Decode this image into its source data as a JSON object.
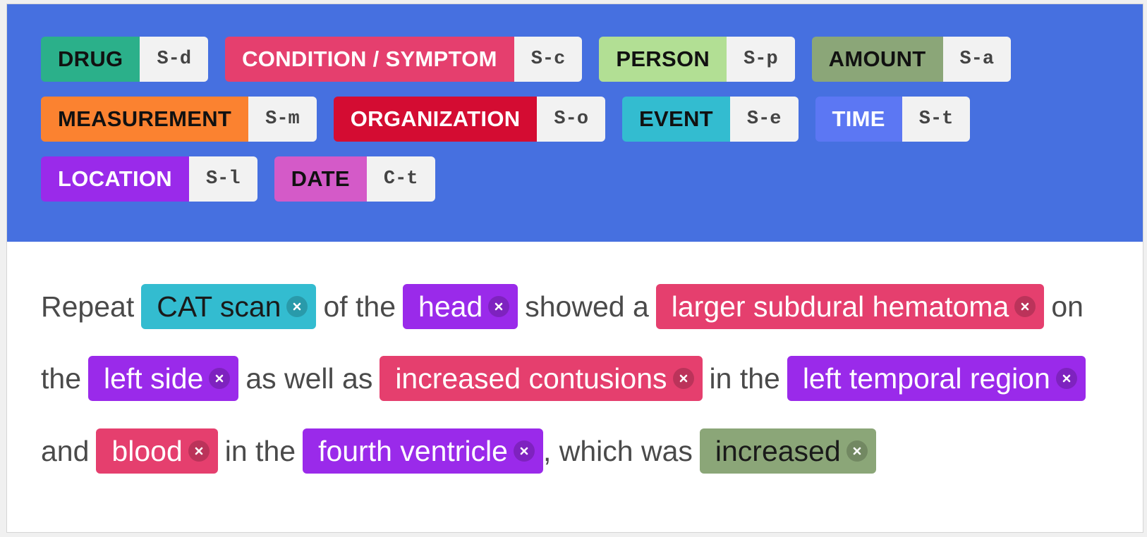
{
  "labels": [
    {
      "name": "DRUG",
      "key": "S-d",
      "bg": "#2bb08a",
      "fg": "#111111"
    },
    {
      "name": "CONDITION / SYMPTOM",
      "key": "S-c",
      "bg": "#e53f6e",
      "fg": "#ffffff"
    },
    {
      "name": "PERSON",
      "key": "S-p",
      "bg": "#b2df94",
      "fg": "#111111"
    },
    {
      "name": "AMOUNT",
      "key": "S-a",
      "bg": "#8ba678",
      "fg": "#111111"
    },
    {
      "name": "MEASUREMENT",
      "key": "S-m",
      "bg": "#fb8230",
      "fg": "#111111"
    },
    {
      "name": "ORGANIZATION",
      "key": "S-o",
      "bg": "#d40c32",
      "fg": "#ffffff"
    },
    {
      "name": "EVENT",
      "key": "S-e",
      "bg": "#33bcd0",
      "fg": "#111111"
    },
    {
      "name": "TIME",
      "key": "S-t",
      "bg": "#5c77f3",
      "fg": "#ffffff"
    },
    {
      "name": "LOCATION",
      "key": "S-l",
      "bg": "#9a2aea",
      "fg": "#ffffff"
    },
    {
      "name": "DATE",
      "key": "C-t",
      "bg": "#d45ac8",
      "fg": "#111111"
    }
  ],
  "label_rows": [
    [
      0,
      1,
      2,
      3
    ],
    [
      4,
      5,
      6,
      7
    ],
    [
      8,
      9
    ]
  ],
  "text_lines": [
    [
      {
        "text": "Repeat"
      },
      {
        "text": "CAT scan",
        "label": "EVENT"
      },
      {
        "text": "of the"
      },
      {
        "text": "head",
        "label": "LOCATION"
      },
      {
        "text": "showed a"
      },
      {
        "text": "larger subdural hematoma",
        "label": "CONDITION / SYMPTOM"
      },
      {
        "text": "on"
      }
    ],
    [
      {
        "text": "the"
      },
      {
        "text": "left side",
        "label": "LOCATION"
      },
      {
        "text": "as well as"
      },
      {
        "text": "increased contusions",
        "label": "CONDITION / SYMPTOM"
      },
      {
        "text": "in the"
      },
      {
        "text": "left temporal region",
        "label": "LOCATION"
      }
    ],
    [
      {
        "text": "and"
      },
      {
        "text": "blood",
        "label": "CONDITION / SYMPTOM"
      },
      {
        "text": "in the"
      },
      {
        "text": "fourth ventricle",
        "label": "LOCATION"
      },
      {
        "text": ", which was",
        "attach": true
      },
      {
        "text": "increased",
        "label": "AMOUNT"
      }
    ]
  ],
  "icons": {
    "remove": "close-icon"
  }
}
